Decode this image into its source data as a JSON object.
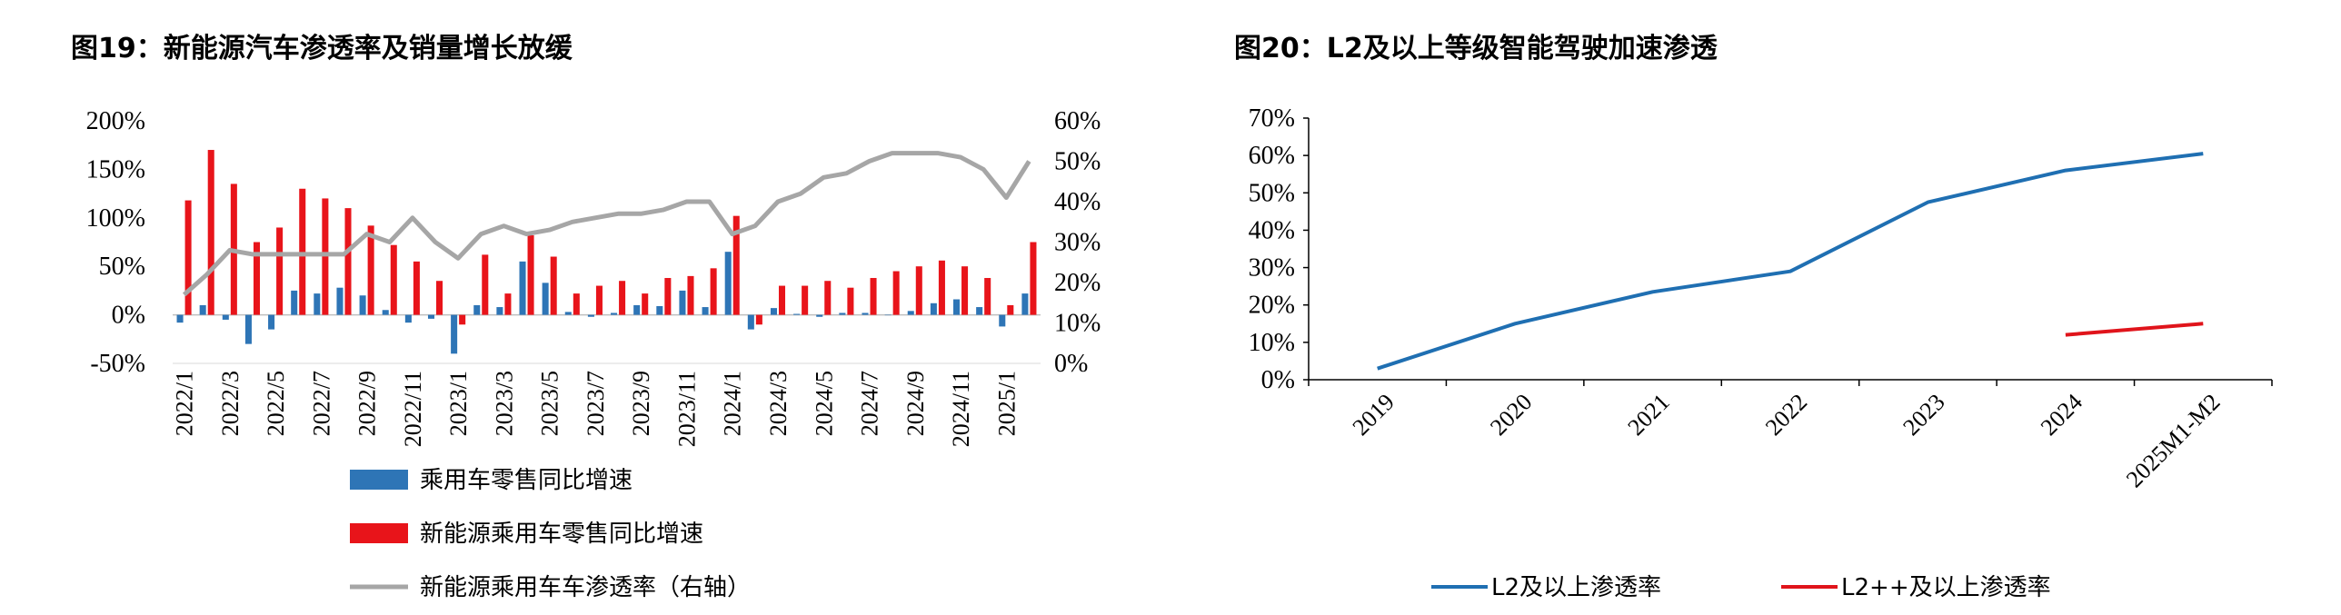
{
  "figures": {
    "fig19_title": "图19：新能源汽车渗透率及销量增长放缓",
    "fig20_title": "图20：L2及以上等级智能驾驶加速渗透"
  },
  "chart_data": [
    {
      "type": "bar",
      "title": "图19：新能源汽车渗透率及销量增长放缓",
      "left_axis": {
        "ticks": [
          "-50%",
          "0%",
          "50%",
          "100%",
          "150%",
          "200%"
        ],
        "ylim": [
          -50,
          200
        ]
      },
      "right_axis": {
        "ticks": [
          "0%",
          "10%",
          "20%",
          "30%",
          "40%",
          "50%",
          "60%"
        ],
        "ylim": [
          0,
          60
        ]
      },
      "categories": [
        "2022/1",
        "2022/2",
        "2022/3",
        "2022/4",
        "2022/5",
        "2022/6",
        "2022/7",
        "2022/8",
        "2022/9",
        "2022/10",
        "2022/11",
        "2022/12",
        "2023/1",
        "2023/2",
        "2023/3",
        "2023/4",
        "2023/5",
        "2023/6",
        "2023/7",
        "2023/8",
        "2023/9",
        "2023/10",
        "2023/11",
        "2023/12",
        "2024/1",
        "2024/2",
        "2024/3",
        "2024/4",
        "2024/5",
        "2024/6",
        "2024/7",
        "2024/8",
        "2024/9",
        "2024/10",
        "2024/11",
        "2024/12",
        "2025/1",
        "2025/2"
      ],
      "x_tick_labels": [
        "2022/1",
        "2022/3",
        "2022/5",
        "2022/7",
        "2022/9",
        "2022/11",
        "2023/1",
        "2023/3",
        "2023/5",
        "2023/7",
        "2023/9",
        "2023/11",
        "2024/1",
        "2024/3",
        "2024/5",
        "2024/7",
        "2024/9",
        "2024/11",
        "2025/1"
      ],
      "series": [
        {
          "name": "乘用车零售同比增速",
          "kind": "bar",
          "axis": "left",
          "color": "#2e75b6",
          "values": [
            -8,
            10,
            -5,
            -30,
            -15,
            25,
            22,
            28,
            20,
            5,
            -8,
            -4,
            -40,
            10,
            8,
            55,
            33,
            3,
            -2,
            2,
            10,
            9,
            25,
            8,
            65,
            -15,
            7,
            1,
            -2,
            2,
            2,
            0,
            4,
            12,
            16,
            8,
            -12,
            22
          ]
        },
        {
          "name": "新能源乘用车零售同比增速",
          "kind": "bar",
          "axis": "left",
          "color": "#e8141a",
          "values": [
            118,
            170,
            135,
            75,
            90,
            130,
            120,
            110,
            92,
            72,
            55,
            35,
            -10,
            62,
            22,
            82,
            60,
            22,
            30,
            35,
            22,
            38,
            40,
            48,
            102,
            -10,
            30,
            30,
            35,
            28,
            38,
            45,
            50,
            56,
            50,
            38,
            10,
            75
          ]
        },
        {
          "name": "新能源乘用车车渗透率（右轴）",
          "kind": "line",
          "axis": "right",
          "color": "#a6a6a6",
          "values": [
            17,
            22,
            28,
            27,
            27,
            27,
            27,
            27,
            32,
            30,
            36,
            30,
            26,
            32,
            34,
            32,
            33,
            35,
            36,
            37,
            37,
            38,
            40,
            40,
            32,
            34,
            40,
            42,
            46,
            47,
            50,
            52,
            52,
            52,
            51,
            48,
            41,
            50
          ]
        }
      ],
      "legend": [
        "乘用车零售同比增速",
        "新能源乘用车零售同比增速",
        "新能源乘用车车渗透率（右轴）"
      ],
      "legend_position": "bottom"
    },
    {
      "type": "line",
      "title": "图20：L2及以上等级智能驾驶加速渗透",
      "categories": [
        "2019",
        "2020",
        "2021",
        "2022",
        "2023",
        "2024",
        "2025M1-M2"
      ],
      "y_ticks": [
        "0%",
        "10%",
        "20%",
        "30%",
        "40%",
        "50%",
        "60%",
        "70%"
      ],
      "ylim": [
        0,
        70
      ],
      "series": [
        {
          "name": "L2及以上渗透率",
          "color": "#1f6fb2",
          "values": [
            3,
            15,
            23.5,
            29,
            47.5,
            56,
            60.5
          ]
        },
        {
          "name": "L2++及以上渗透率",
          "color": "#e0141b",
          "values": [
            null,
            null,
            null,
            null,
            null,
            12,
            15
          ]
        }
      ],
      "legend": [
        "L2及以上渗透率",
        "L2++及以上渗透率"
      ],
      "legend_position": "bottom"
    }
  ]
}
